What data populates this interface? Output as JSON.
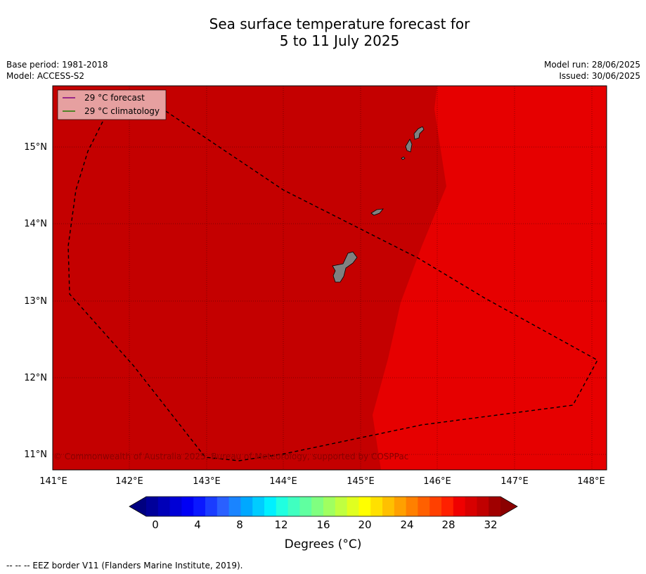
{
  "title": {
    "line1": "Sea surface temperature forecast for",
    "line2": "5 to 11 July 2025"
  },
  "meta_left": {
    "base_period": "Base period: 1981-2018",
    "model": "Model: ACCESS-S2"
  },
  "meta_right": {
    "model_run": "Model run: 28/06/2025",
    "issued": "Issued: 30/06/2025"
  },
  "legend": {
    "forecast": "29 °C  forecast",
    "climatology": "29 °C  climatology",
    "colors": {
      "forecast": "#800080",
      "climatology": "#207a00"
    }
  },
  "map": {
    "lon_range": [
      141,
      148.2
    ],
    "lat_range": [
      10.8,
      15.8
    ],
    "x_ticks": [
      "141°E",
      "142°E",
      "143°E",
      "144°E",
      "145°E",
      "146°E",
      "147°E",
      "148°E"
    ],
    "y_ticks": [
      "15°N",
      "14°N",
      "13°N",
      "12°N",
      "11°N"
    ],
    "colors": {
      "sst_30_31": "#c40000",
      "sst_31_32": "#e60000",
      "land": "#808080"
    },
    "copyright": "© Commonwealth of Australia 2025, Bureau of Meteorology, supported by COSPPac"
  },
  "colorbar": {
    "ticks": [
      "0",
      "4",
      "8",
      "12",
      "16",
      "20",
      "24",
      "28",
      "32"
    ],
    "label": "Degrees (°C)",
    "colors": [
      "#00009a",
      "#0000b8",
      "#0000d6",
      "#0000f5",
      "#0a18ff",
      "#1a3cff",
      "#2a60ff",
      "#1a84ff",
      "#00a8ff",
      "#00ccff",
      "#00f0ff",
      "#20ffe0",
      "#40ffc0",
      "#60ffa0",
      "#80ff80",
      "#a0ff60",
      "#c0ff40",
      "#e0ff20",
      "#ffff00",
      "#ffe000",
      "#ffc000",
      "#ffa000",
      "#ff8000",
      "#ff6000",
      "#ff4000",
      "#ff2000",
      "#f00000",
      "#d80000",
      "#c00000",
      "#a00000"
    ],
    "low_color": "#000080",
    "high_color": "#8b0000"
  },
  "footer": "--  --  -- EEZ border V11 (Flanders Marine Institute, 2019)."
}
